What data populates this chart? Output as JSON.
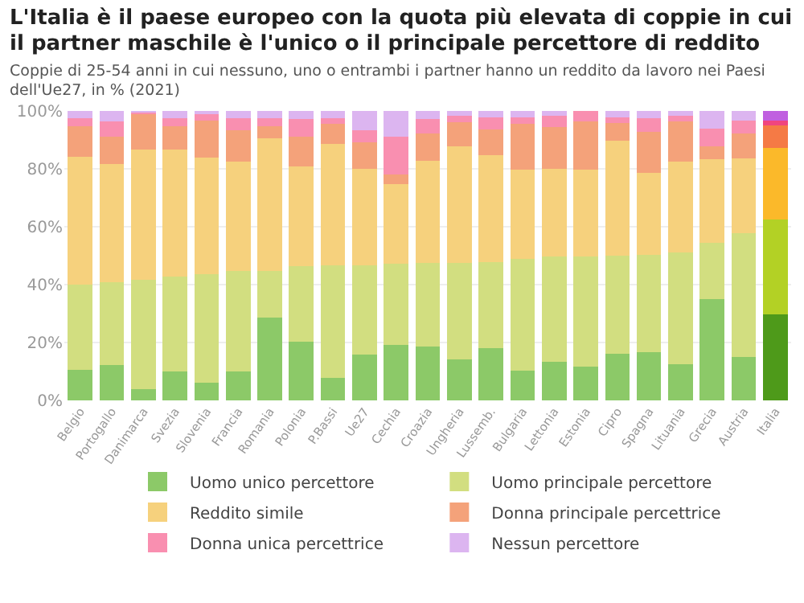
{
  "chart_data": {
    "type": "bar",
    "stacked": true,
    "title": "L'Italia è il paese europeo con la quota più elevata di coppie in cui il partner maschile è l'unico o il principale percettore di reddito",
    "subtitle": "Coppie di 25-54 anni in cui nessuno, uno o entrambi i partner hanno un reddito da lavoro nei Paesi dell'Ue27, in % (2021)",
    "categories": [
      "Belgio",
      "Portogallo",
      "Danimarca",
      "Svezia",
      "Slovenia",
      "Francia",
      "Romania",
      "Polonia",
      "P.Bassi",
      "Ue27",
      "Cechia",
      "Croazia",
      "Ungheria",
      "Lussemb.",
      "Bulgaria",
      "Lettonia",
      "Estonia",
      "Cipro",
      "Spagna",
      "Lituania",
      "Grecia",
      "Austria",
      "Italia"
    ],
    "series": [
      {
        "name": "Uomo unico percettore",
        "color": "#8cc968",
        "colors": [
          "#8cc968",
          "#8cc968",
          "#8cc968",
          "#8cc968",
          "#8cc968",
          "#8cc968",
          "#8cc968",
          "#8cc968",
          "#8cc968",
          "#8cc968",
          "#8cc968",
          "#8cc968",
          "#8cc968",
          "#8cc968",
          "#8cc968",
          "#8cc968",
          "#8cc968",
          "#8cc968",
          "#8cc968",
          "#8cc968",
          "#8cc968",
          "#8cc968",
          "#4e9a1a"
        ],
        "values": [
          10.5,
          12.3,
          3.9,
          10,
          6,
          10,
          28.6,
          20.4,
          7.8,
          15.7,
          19.1,
          18.6,
          14.1,
          18,
          10.4,
          13.3,
          11.8,
          16.2,
          16.8,
          12.5,
          35.1,
          14.9,
          29.6
        ]
      },
      {
        "name": "Uomo principale percettore",
        "color": "#d2de80",
        "colors": [
          "#d2de80",
          "#d2de80",
          "#d2de80",
          "#d2de80",
          "#d2de80",
          "#d2de80",
          "#d2de80",
          "#d2de80",
          "#d2de80",
          "#d2de80",
          "#d2de80",
          "#d2de80",
          "#d2de80",
          "#d2de80",
          "#d2de80",
          "#d2de80",
          "#d2de80",
          "#d2de80",
          "#d2de80",
          "#d2de80",
          "#d2de80",
          "#d2de80",
          "#b3d125"
        ],
        "values": [
          29.5,
          28.5,
          37.7,
          32.7,
          37.5,
          34.8,
          16.2,
          25.9,
          38.8,
          31.1,
          28,
          28.8,
          33.5,
          29.9,
          38.5,
          36.4,
          38,
          33.8,
          33.4,
          38.5,
          19.3,
          42.9,
          33
        ]
      },
      {
        "name": "Reddito simile",
        "color": "#f6d17d",
        "colors": [
          "#f6d17d",
          "#f6d17d",
          "#f6d17d",
          "#f6d17d",
          "#f6d17d",
          "#f6d17d",
          "#f6d17d",
          "#f6d17d",
          "#f6d17d",
          "#f6d17d",
          "#f6d17d",
          "#f6d17d",
          "#f6d17d",
          "#f6d17d",
          "#f6d17d",
          "#f6d17d",
          "#f6d17d",
          "#f6d17d",
          "#f6d17d",
          "#f6d17d",
          "#f6d17d",
          "#f6d17d",
          "#fbb92a"
        ],
        "values": [
          44.3,
          40.8,
          45,
          43.9,
          40.3,
          37.7,
          45.8,
          34.6,
          42.1,
          33.1,
          27.5,
          35.4,
          40.1,
          36.9,
          30.7,
          30.2,
          29.8,
          39.6,
          28.3,
          31.5,
          28.9,
          25.7,
          24.5
        ]
      },
      {
        "name": "Donna principale percettrice",
        "color": "#f4a27a",
        "colors": [
          "#f4a27a",
          "#f4a27a",
          "#f4a27a",
          "#f4a27a",
          "#f4a27a",
          "#f4a27a",
          "#f4a27a",
          "#f4a27a",
          "#f4a27a",
          "#f4a27a",
          "#f4a27a",
          "#f4a27a",
          "#f4a27a",
          "#f4a27a",
          "#f4a27a",
          "#f4a27a",
          "#f4a27a",
          "#f4a27a",
          "#f4a27a",
          "#f4a27a",
          "#f4a27a",
          "#f4a27a",
          "#f57a45"
        ],
        "values": [
          10.4,
          9.5,
          12.4,
          8.1,
          12.8,
          10.7,
          4.1,
          10.2,
          6.8,
          9.3,
          3.4,
          9.4,
          8.4,
          8.7,
          15.9,
          14.6,
          16.7,
          6.2,
          14.2,
          13.8,
          4.6,
          8.7,
          7.9
        ]
      },
      {
        "name": "Donna unica percettrice",
        "color": "#f98fb0",
        "colors": [
          "#f98fb0",
          "#f98fb0",
          "#f98fb0",
          "#f98fb0",
          "#f98fb0",
          "#f98fb0",
          "#f98fb0",
          "#f98fb0",
          "#f98fb0",
          "#f98fb0",
          "#f98fb0",
          "#f98fb0",
          "#f98fb0",
          "#f98fb0",
          "#f98fb0",
          "#f98fb0",
          "#f98fb0",
          "#f98fb0",
          "#f98fb0",
          "#f98fb0",
          "#f98fb0",
          "#f98fb0",
          "#f0457e"
        ],
        "values": [
          2.9,
          5.2,
          0.7,
          2.9,
          2.6,
          4.2,
          2.7,
          6,
          2.1,
          4.2,
          13.1,
          4.9,
          2.3,
          4.4,
          2.4,
          3.9,
          3.7,
          2.1,
          4.7,
          2.1,
          6,
          4.4,
          1.8
        ]
      },
      {
        "name": "Nessun percettore",
        "color": "#dcb5f0",
        "colors": [
          "#dcb5f0",
          "#dcb5f0",
          "#dcb5f0",
          "#dcb5f0",
          "#dcb5f0",
          "#dcb5f0",
          "#dcb5f0",
          "#dcb5f0",
          "#dcb5f0",
          "#dcb5f0",
          "#dcb5f0",
          "#dcb5f0",
          "#dcb5f0",
          "#dcb5f0",
          "#dcb5f0",
          "#dcb5f0",
          "#dcb5f0",
          "#dcb5f0",
          "#dcb5f0",
          "#dcb5f0",
          "#dcb5f0",
          "#dcb5f0",
          "#c060e0"
        ],
        "values": [
          2.4,
          3.7,
          0.3,
          2.4,
          0.8,
          2.6,
          2.6,
          2.9,
          2.4,
          6.6,
          8.9,
          2.9,
          1.6,
          2.1,
          2.1,
          1.6,
          null,
          2.1,
          2.6,
          1.6,
          6.1,
          3.4,
          3.2
        ]
      }
    ],
    "ylim": [
      0,
      100
    ],
    "yticks": [
      {
        "value": 0,
        "label": "0%"
      },
      {
        "value": 20,
        "label": "20%"
      },
      {
        "value": 40,
        "label": "40%"
      },
      {
        "value": 60,
        "label": "60%"
      },
      {
        "value": 80,
        "label": "80%"
      },
      {
        "value": 100,
        "label": "100%"
      }
    ],
    "grid": "y",
    "legend": "bottom"
  }
}
